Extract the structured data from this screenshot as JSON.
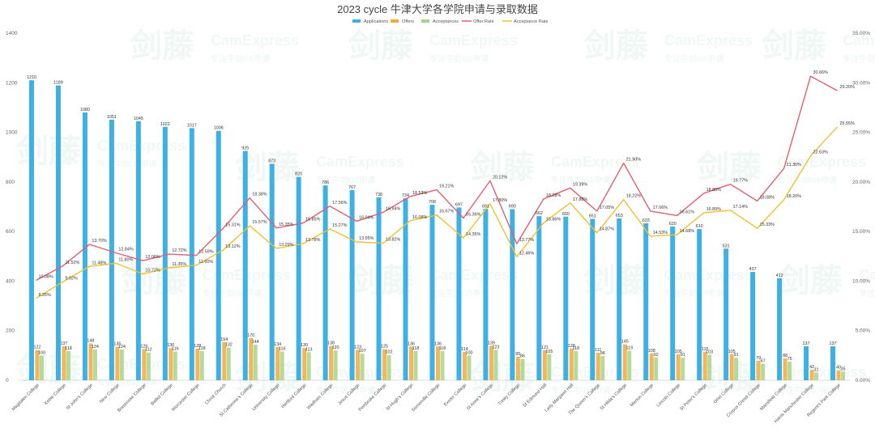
{
  "chart_data": {
    "type": "bar",
    "title": "2023 cycle 牛津大学各学院申请与录取数据",
    "categories": [
      "Magdalen College",
      "Keble College",
      "St John's College",
      "New College",
      "Brasenose College",
      "Balliol College",
      "Worcester College",
      "Christ Church",
      "St Catherine's College",
      "University College",
      "Hertford College",
      "Wadham College",
      "Jesus College",
      "Pembroke College",
      "St Hugh's College",
      "Somerville College",
      "Exeter College",
      "St Anne's College",
      "Trinity College",
      "St Edmund Hall",
      "Lady Margaret Hall",
      "The Queen's College",
      "St Hilda's College",
      "Merton College",
      "Lincoln College",
      "St Peter's College",
      "Oriel College",
      "Corpus Christi College",
      "Mansfield College",
      "Harris Manchester College",
      "Regent's Park College"
    ],
    "series": [
      {
        "name": "Applications",
        "axis": "left",
        "kind": "bar",
        "color": "#3fb0e3",
        "values": [
          1210,
          1189,
          1080,
          1051,
          1045,
          1022,
          1017,
          1006,
          925,
          873,
          820,
          786,
          767,
          738,
          734,
          708,
          697,
          691,
          690,
          662,
          660,
          651,
          653,
          633,
          620,
          610,
          531,
          437,
          412,
          137,
          137
        ]
      },
      {
        "name": "Offers",
        "axis": "left",
        "kind": "bar",
        "color": "#f2a93b",
        "values": [
          122,
          137,
          148,
          135,
          126,
          130,
          128,
          154,
          170,
          134,
          130,
          138,
          123,
          125,
          136,
          136,
          114,
          139,
          95,
          121,
          128,
          111,
          145,
          108,
          105,
          115,
          105,
          79,
          88,
          42,
          40
        ]
      },
      {
        "name": "Acceptances",
        "axis": "left",
        "kind": "bar",
        "color": "#a8d48a",
        "values": [
          100,
          118,
          124,
          124,
          112,
          116,
          118,
          132,
          144,
          116,
          113,
          120,
          107,
          102,
          118,
          118,
          100,
          123,
          86,
          105,
          118,
          98,
          119,
          92,
          91,
          103,
          91,
          67,
          75,
          31,
          35
        ]
      },
      {
        "name": "Offer Rate",
        "axis": "right",
        "kind": "line",
        "color": "#e06070",
        "values": [
          10.08,
          11.52,
          13.7,
          12.84,
          12.06,
          12.72,
          12.59,
          15.31,
          18.38,
          15.35,
          15.85,
          17.56,
          16.04,
          16.94,
          18.53,
          19.21,
          16.36,
          20.12,
          13.77,
          18.28,
          19.39,
          17.05,
          21.9,
          17.06,
          16.61,
          18.85,
          19.77,
          18.08,
          21.36,
          30.66,
          29.2
        ]
      },
      {
        "name": "Acceptance Rate",
        "axis": "right",
        "kind": "line",
        "color": "#f0c030",
        "values": [
          8.26,
          9.92,
          11.48,
          11.8,
          10.72,
          11.35,
          11.6,
          13.12,
          15.57,
          13.29,
          13.78,
          15.27,
          13.95,
          13.82,
          16.08,
          16.67,
          14.35,
          17.8,
          12.46,
          15.86,
          17.88,
          14.87,
          18.22,
          14.53,
          14.68,
          16.89,
          17.14,
          15.33,
          18.2,
          22.63,
          25.55
        ]
      }
    ],
    "bar_labels": {
      "Applications": [
        "1210",
        "1189",
        "1080",
        "1051",
        "1045",
        "1022",
        "1017",
        "1006",
        "925",
        "873",
        "820",
        "786",
        "767",
        "738",
        "734",
        "708",
        "697",
        "691",
        "690",
        "662",
        "660",
        "651",
        "653",
        "633",
        "620",
        "610",
        "531",
        "437",
        "412",
        "137",
        "137"
      ],
      "Offers": [
        "122",
        "137",
        "148",
        "135",
        "126",
        "130",
        "128",
        "154",
        "170",
        "134",
        "130",
        "138",
        "123",
        "125",
        "136",
        "136",
        "114",
        "139",
        "95",
        "121",
        "128",
        "111",
        "145",
        "108",
        "105",
        "115",
        "105",
        "79",
        "88",
        "42",
        "40"
      ],
      "Acceptances": [
        "100",
        "118",
        "124",
        "124",
        "112",
        "116",
        "118",
        "132",
        "144",
        "116",
        "113",
        "120",
        "107",
        "102",
        "118",
        "118",
        "100",
        "123",
        "86",
        "105",
        "118",
        "98",
        "119",
        "92",
        "91",
        "103",
        "91",
        "67",
        "75",
        "31",
        "35"
      ]
    },
    "rate_labels": {
      "Offer Rate": [
        "10.08%",
        "11.52%",
        "13.70%",
        "12.84%",
        "12.06%",
        "12.72%",
        "12.59%",
        "15.31%",
        "18.38%",
        "15.35%",
        "15.85%",
        "17.56%",
        "16.04%",
        "16.94%",
        "18.53%",
        "19.21%",
        "16.36%",
        "20.12%",
        "13.77%",
        "18.28%",
        "19.39%",
        "17.05%",
        "21.90%",
        "17.06%",
        "16.61%",
        "18.85%",
        "19.77%",
        "18.08%",
        "21.36%",
        "30.66%",
        "29.20%"
      ],
      "Acceptance Rate": [
        "8.26%",
        "9.92%",
        "11.48%",
        "11.80%",
        "10.72%",
        "11.35%",
        "11.60%",
        "13.12%",
        "15.57%",
        "13.29%",
        "13.78%",
        "15.27%",
        "13.95%",
        "13.82%",
        "16.08%",
        "16.67%",
        "14.35%",
        "17.80%",
        "12.46%",
        "15.86%",
        "17.88%",
        "14.87%",
        "18.22%",
        "14.53%",
        "14.68%",
        "16.89%",
        "17.14%",
        "15.33%",
        "18.20%",
        "22.63%",
        "25.55%"
      ]
    },
    "ylim_left": [
      0,
      1400
    ],
    "ylim_right": [
      0,
      35
    ],
    "yticks_left": [
      "0",
      "200",
      "400",
      "600",
      "800",
      "1000",
      "1200",
      "1400"
    ],
    "yticks_right": [
      "0.00%",
      "5.00%",
      "10.00%",
      "15.00%",
      "20.00%",
      "25.00%",
      "30.00%",
      "35.00%"
    ],
    "legend_position": "top-center",
    "grid": false
  },
  "watermark": {
    "brand": "剑藤",
    "text": "CamExpress",
    "tagline": "专注牛剑G5申请"
  }
}
